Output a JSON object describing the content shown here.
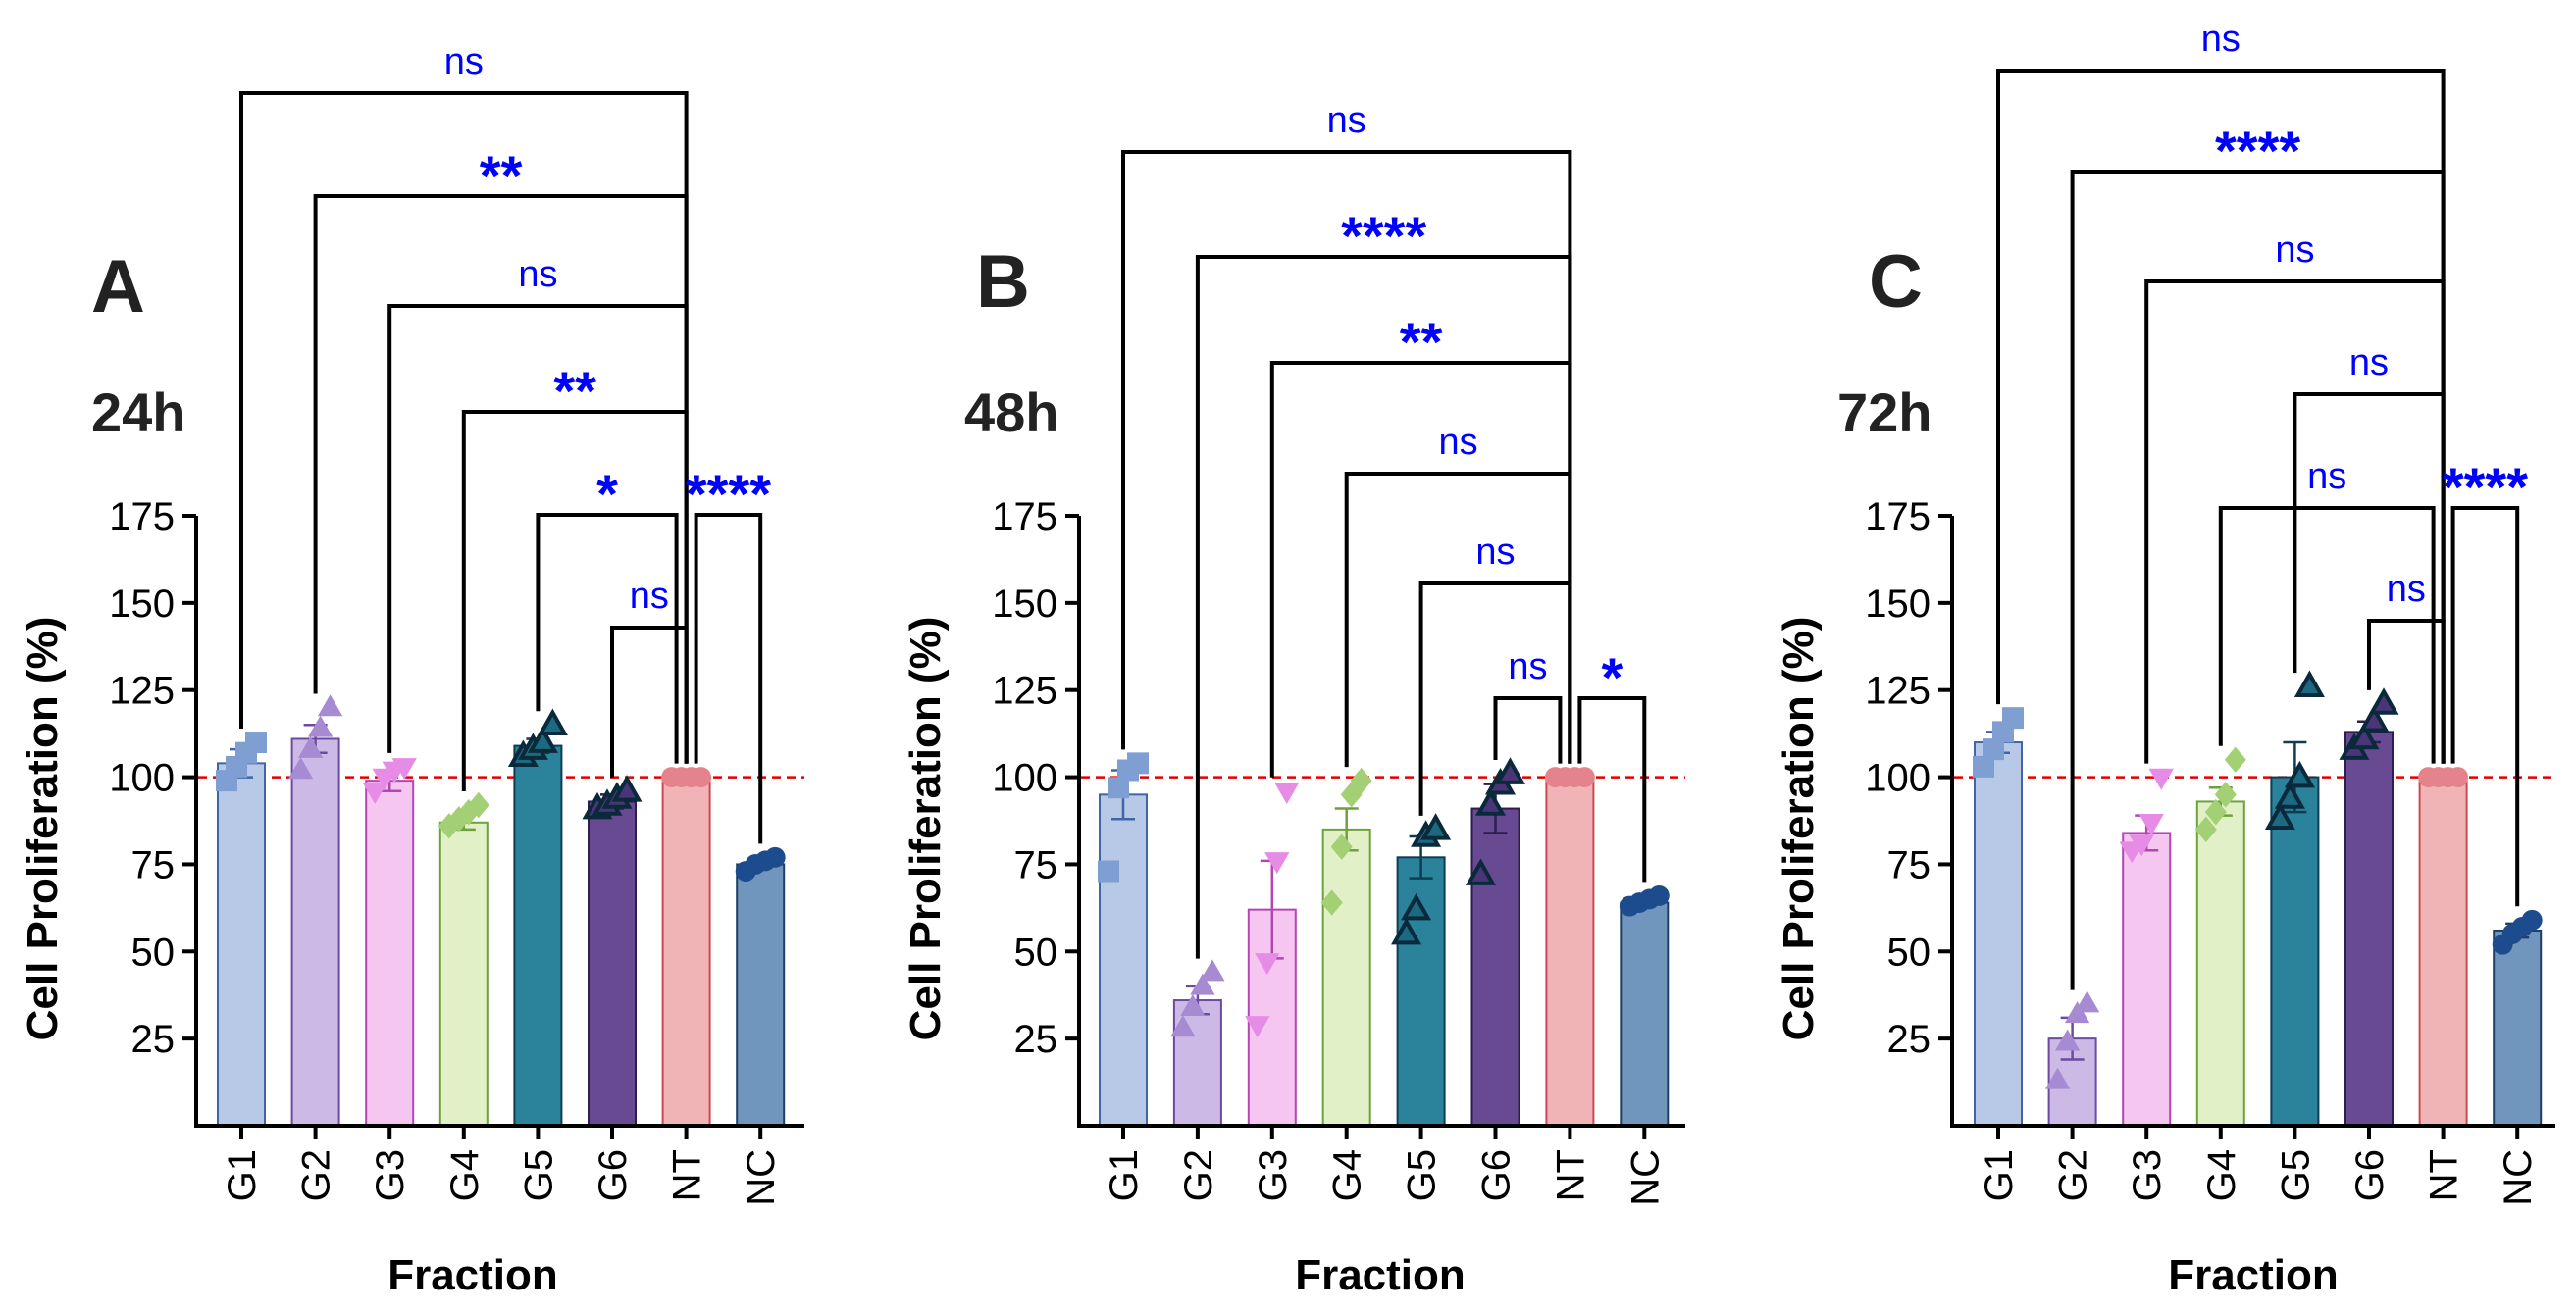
{
  "figure": {
    "x_axis_title": "Fraction",
    "y_axis_title": "Cell Proliferation (%)"
  },
  "chart_data": [
    {
      "type": "bar",
      "panel_letter": "A",
      "title": "24h",
      "xlabel": "Fraction",
      "ylabel": "Cell Proliferation (%)",
      "ylim": [
        0,
        175
      ],
      "yticks": [
        25,
        50,
        75,
        100,
        125,
        150,
        175
      ],
      "reference_line": 100,
      "categories": [
        "G1",
        "G2",
        "G3",
        "G4",
        "G5",
        "G6",
        "NT",
        "NC"
      ],
      "values": [
        104,
        111,
        99,
        87,
        109,
        93,
        100,
        75
      ],
      "errors": [
        4,
        4,
        3,
        2,
        2,
        2,
        0,
        1
      ],
      "points": [
        [
          99,
          103,
          107,
          110
        ],
        [
          102,
          108,
          114,
          120
        ],
        [
          96,
          100,
          102,
          103
        ],
        [
          86,
          88,
          90,
          92
        ],
        [
          106,
          108,
          110,
          115
        ],
        [
          91,
          92,
          94,
          96
        ],
        [
          100,
          100,
          100,
          100
        ],
        [
          73,
          75,
          76,
          77
        ]
      ],
      "comparisons": [
        {
          "from": "G1",
          "to": "NT",
          "label": "ns"
        },
        {
          "from": "G2",
          "to": "NT",
          "label": "**"
        },
        {
          "from": "G3",
          "to": "NT",
          "label": "ns"
        },
        {
          "from": "G4",
          "to": "NT",
          "label": "**"
        },
        {
          "from": "G5",
          "to": "NT",
          "label": "*"
        },
        {
          "from": "NT",
          "to": "NC",
          "label": "****"
        },
        {
          "from": "G6",
          "to": "NT",
          "label": "ns"
        }
      ]
    },
    {
      "type": "bar",
      "panel_letter": "B",
      "title": "48h",
      "xlabel": "Fraction",
      "ylabel": "Cell Proliferation (%)",
      "ylim": [
        0,
        175
      ],
      "yticks": [
        25,
        50,
        75,
        100,
        125,
        150,
        175
      ],
      "reference_line": 100,
      "categories": [
        "G1",
        "G2",
        "G3",
        "G4",
        "G5",
        "G6",
        "NT",
        "NC"
      ],
      "values": [
        95,
        36,
        62,
        85,
        77,
        91,
        100,
        64
      ],
      "errors": [
        7,
        4,
        14,
        6,
        6,
        7,
        0,
        1
      ],
      "points": [
        [
          73,
          97,
          102,
          104
        ],
        [
          28,
          34,
          40,
          44
        ],
        [
          29,
          47,
          76,
          96
        ],
        [
          64,
          80,
          95,
          99
        ],
        [
          55,
          62,
          83,
          85
        ],
        [
          72,
          92,
          98,
          101
        ],
        [
          100,
          100,
          100,
          100
        ],
        [
          63,
          64,
          65,
          66
        ]
      ],
      "comparisons": [
        {
          "from": "G1",
          "to": "NT",
          "label": "ns"
        },
        {
          "from": "G2",
          "to": "NT",
          "label": "****"
        },
        {
          "from": "G3",
          "to": "NT",
          "label": "**"
        },
        {
          "from": "G4",
          "to": "NT",
          "label": "ns"
        },
        {
          "from": "G5",
          "to": "NT",
          "label": "ns"
        },
        {
          "from": "G6",
          "to": "NT",
          "label": "ns"
        },
        {
          "from": "NT",
          "to": "NC",
          "label": "*"
        }
      ]
    },
    {
      "type": "bar",
      "panel_letter": "C",
      "title": "72h",
      "xlabel": "Fraction",
      "ylabel": "Cell Proliferation (%)",
      "ylim": [
        0,
        175
      ],
      "yticks": [
        25,
        50,
        75,
        100,
        125,
        150,
        175
      ],
      "reference_line": 100,
      "categories": [
        "G1",
        "G2",
        "G3",
        "G4",
        "G5",
        "G6",
        "NT",
        "NC"
      ],
      "values": [
        110,
        25,
        84,
        93,
        100,
        113,
        100,
        56
      ],
      "errors": [
        3,
        6,
        5,
        4,
        10,
        3,
        0,
        2
      ],
      "points": [
        [
          103,
          108,
          113,
          117
        ],
        [
          13,
          24,
          32,
          35
        ],
        [
          79,
          81,
          87,
          100
        ],
        [
          85,
          90,
          95,
          105
        ],
        [
          88,
          94,
          100,
          126
        ],
        [
          108,
          111,
          116,
          121
        ],
        [
          100,
          100,
          100,
          100
        ],
        [
          52,
          55,
          57,
          59
        ]
      ],
      "comparisons": [
        {
          "from": "G1",
          "to": "NT",
          "label": "ns"
        },
        {
          "from": "G2",
          "to": "NT",
          "label": "****"
        },
        {
          "from": "G3",
          "to": "NT",
          "label": "ns"
        },
        {
          "from": "G5",
          "to": "NT",
          "label": "ns"
        },
        {
          "from": "G4",
          "to": "NT",
          "label": "ns"
        },
        {
          "from": "NT",
          "to": "NC",
          "label": "****"
        },
        {
          "from": "G6",
          "to": "NT",
          "label": "ns"
        }
      ]
    }
  ],
  "colors": {
    "G1": {
      "fill": "#b7c9e6",
      "stroke": "#3f66a8",
      "point": "#7f9fd3"
    },
    "G2": {
      "fill": "#cdb9e6",
      "stroke": "#6b4aa0",
      "point": "#a68bd2"
    },
    "G3": {
      "fill": "#f4c6f0",
      "stroke": "#b446b4",
      "point": "#e68ce6"
    },
    "G4": {
      "fill": "#e1f0c6",
      "stroke": "#6da23b",
      "point": "#a3cf75"
    },
    "G5": {
      "fill": "#2a829b",
      "stroke": "#0d3d55",
      "point": "#1b6a82"
    },
    "G6": {
      "fill": "#684a93",
      "stroke": "#2c1e4d",
      "point": "#4b3477"
    },
    "NT": {
      "fill": "#f0b3b6",
      "stroke": "#cc4950",
      "point": "#e4838b"
    },
    "NC": {
      "fill": "#7096be",
      "stroke": "#1f3e65",
      "point": "#1c4c8d"
    },
    "axis": "#000000",
    "significance": "#0000ff",
    "reference": "#e00000"
  },
  "markers": [
    "square",
    "triangle-up",
    "triangle-down",
    "diamond",
    "triangle-up-open",
    "triangle-up-open",
    "circle",
    "circle"
  ]
}
